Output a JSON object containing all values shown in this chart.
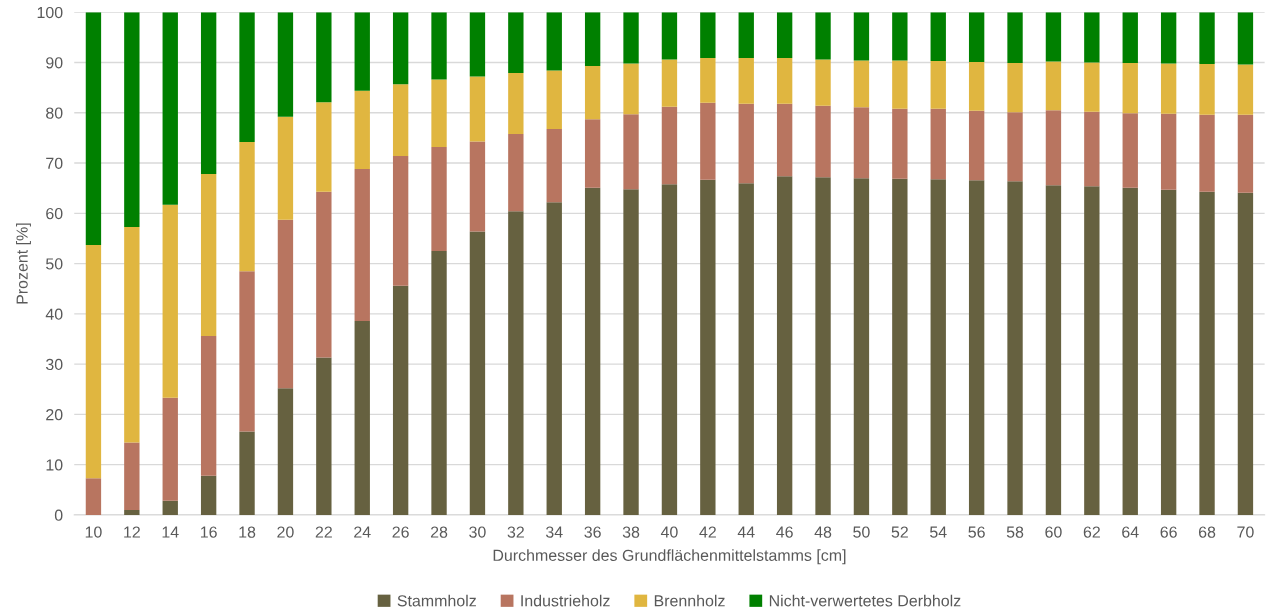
{
  "chart_data": {
    "type": "bar",
    "stacked": true,
    "xlabel": "Durchmesser des Grundflächenmittelstamms [cm]",
    "ylabel": "Prozent [%]",
    "categories": [
      "10",
      "12",
      "14",
      "16",
      "18",
      "20",
      "22",
      "24",
      "26",
      "28",
      "30",
      "32",
      "34",
      "36",
      "38",
      "40",
      "42",
      "44",
      "46",
      "48",
      "50",
      "52",
      "54",
      "56",
      "58",
      "60",
      "62",
      "64",
      "66",
      "68",
      "70"
    ],
    "series": [
      {
        "name": "Stammholz",
        "color": "#666140",
        "values": [
          0,
          1.0,
          2.8,
          7.8,
          16.6,
          25.2,
          31.3,
          38.6,
          45.6,
          52.5,
          56.4,
          60.4,
          62.2,
          65.1,
          64.8,
          65.8,
          66.7,
          66.0,
          67.4,
          67.2,
          67.0,
          66.9,
          66.8,
          66.6,
          66.4,
          65.6,
          65.4,
          65.1,
          64.7,
          64.3,
          64.1
        ]
      },
      {
        "name": "Industrieholz",
        "color": "#b87560",
        "values": [
          7.3,
          13.4,
          20.5,
          27.8,
          31.9,
          33.5,
          33.0,
          30.2,
          25.8,
          20.7,
          17.9,
          15.4,
          14.6,
          13.6,
          14.9,
          15.4,
          15.3,
          15.8,
          14.4,
          14.2,
          14.1,
          13.9,
          14.0,
          13.8,
          13.7,
          14.9,
          14.8,
          14.8,
          15.1,
          15.3,
          15.5
        ]
      },
      {
        "name": "Brennholz",
        "color": "#e0b640",
        "values": [
          46.4,
          42.9,
          38.4,
          32.2,
          25.7,
          20.5,
          17.8,
          15.6,
          14.3,
          13.4,
          12.9,
          12.1,
          11.6,
          10.6,
          10.1,
          9.4,
          8.9,
          9.1,
          9.1,
          9.2,
          9.3,
          9.6,
          9.5,
          9.7,
          9.8,
          9.7,
          9.8,
          10.0,
          10.0,
          10.1,
          10.0
        ]
      },
      {
        "name": "Nicht-verwertetes Derbholz",
        "color": "#008000",
        "values": [
          46.3,
          42.7,
          38.3,
          32.2,
          25.8,
          20.8,
          17.9,
          15.6,
          14.3,
          13.4,
          12.8,
          12.1,
          11.6,
          10.7,
          10.2,
          9.4,
          9.1,
          9.1,
          9.1,
          9.4,
          9.6,
          9.6,
          9.7,
          9.9,
          10.1,
          9.8,
          10.0,
          10.1,
          10.2,
          10.3,
          10.4
        ]
      }
    ],
    "ylim": [
      0,
      100
    ],
    "yticks": [
      0,
      10,
      20,
      30,
      40,
      50,
      60,
      70,
      80,
      90,
      100
    ],
    "grid": "y",
    "legend": "bottom"
  }
}
